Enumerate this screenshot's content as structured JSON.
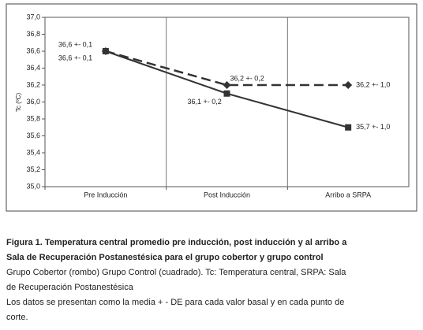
{
  "chart_data": {
    "type": "line",
    "ylabel": "Tc (ºC)",
    "categories": [
      "Pre Inducción",
      "Post Inducción",
      "Arribo a SRPA"
    ],
    "ylim": [
      35,
      37
    ],
    "yticks": [
      {
        "value": 35,
        "label": "35,0"
      },
      {
        "value": 35.2,
        "label": "35,2"
      },
      {
        "value": 35.4,
        "label": "35,4"
      },
      {
        "value": 35.6,
        "label": "35,6"
      },
      {
        "value": 35.8,
        "label": "35,8"
      },
      {
        "value": 36,
        "label": "36,0"
      },
      {
        "value": 36.2,
        "label": "36,2"
      },
      {
        "value": 36.4,
        "label": "36,4"
      },
      {
        "value": 36.6,
        "label": "36,6"
      },
      {
        "value": 36.8,
        "label": "36,8"
      },
      {
        "value": 37,
        "label": "37,0"
      }
    ],
    "series": [
      {
        "color": "#333333",
        "marker": "diamond",
        "line_style": "dashed",
        "values": [
          36.6,
          36.2,
          36.2
        ],
        "value_labels": [
          "36,6 +- 0,1",
          "36,2 +- 0,2",
          "36,2 +- 1,0"
        ]
      },
      {
        "color": "#333333",
        "marker": "square",
        "line_style": "solid",
        "values": [
          36.6,
          36.1,
          35.7
        ],
        "value_labels": [
          "36,6 +- 0,1",
          "36,1 +- 0,2",
          "35,7 +- 1,0"
        ]
      }
    ]
  },
  "caption": {
    "lines": [
      "Figura 1. Temperatura central promedio pre inducción, post inducción y al arribo a",
      "Sala de Recuperación Postanestésica para el grupo cobertor y grupo control",
      "Grupo Cobertor (rombo) Grupo Control (cuadrado). Tc:  Temperatura central, SRPA: Sala",
      "de Recuperación Postanestésica",
      " Los datos se presentan como la media + - DE para cada valor basal y en cada punto de",
      "corte."
    ]
  }
}
